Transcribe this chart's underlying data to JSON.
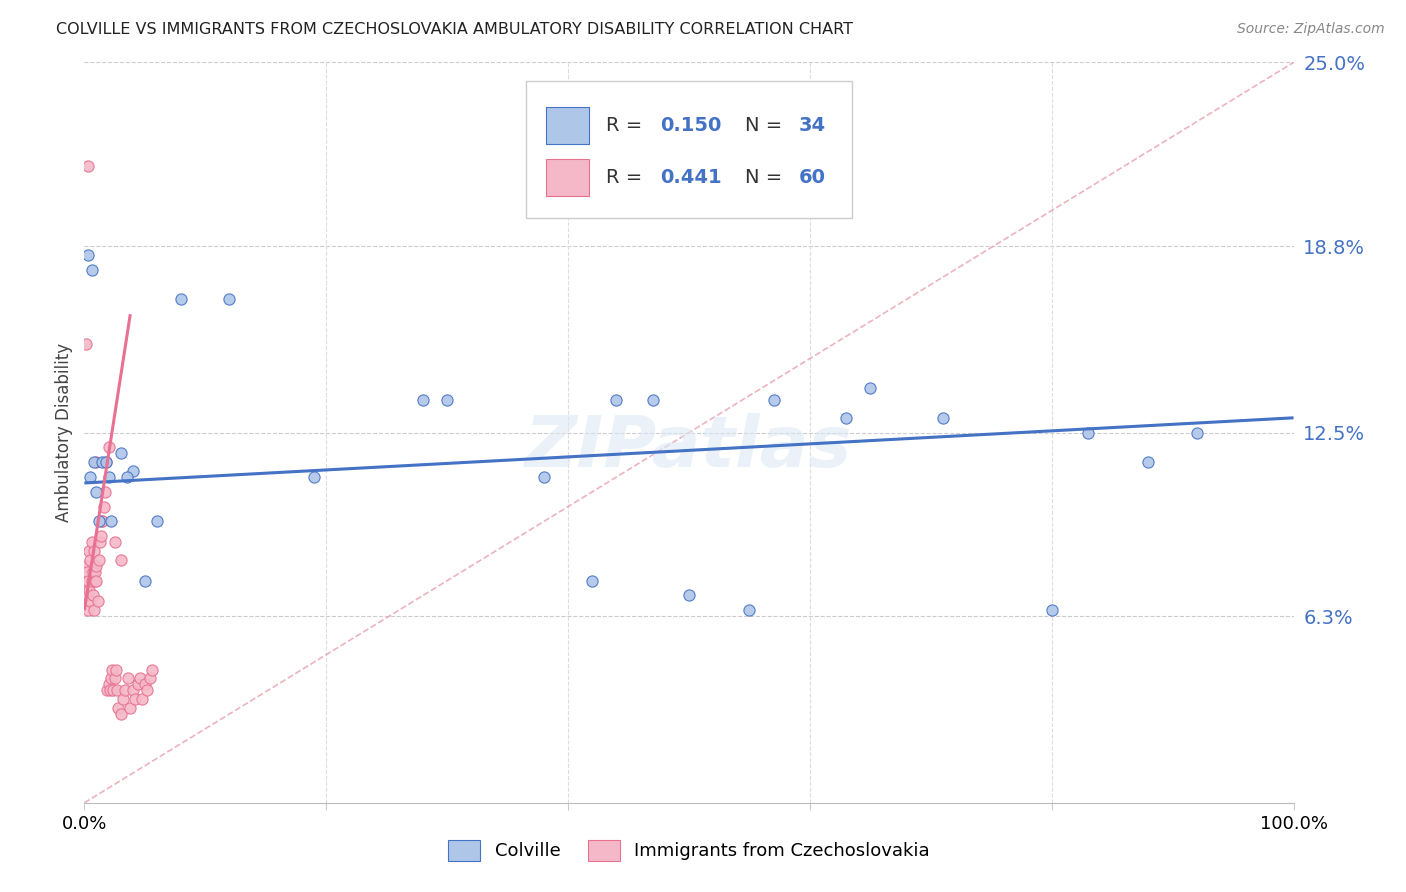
{
  "title": "COLVILLE VS IMMIGRANTS FROM CZECHOSLOVAKIA AMBULATORY DISABILITY CORRELATION CHART",
  "source": "Source: ZipAtlas.com",
  "ylabel": "Ambulatory Disability",
  "ytick_vals": [
    0.0,
    0.063,
    0.125,
    0.188,
    0.25
  ],
  "ytick_labels": [
    "",
    "6.3%",
    "12.5%",
    "18.8%",
    "25.0%"
  ],
  "colville_R": 0.15,
  "colville_N": 34,
  "czech_R": 0.441,
  "czech_N": 60,
  "colville_color": "#aec6e8",
  "czech_color": "#f4b8c8",
  "colville_line_color": "#4472c4",
  "czech_line_color": "#e87090",
  "watermark": "ZIPatlas",
  "colville_x": [
    0.003,
    0.006,
    0.008,
    0.01,
    0.012,
    0.015,
    0.018,
    0.022,
    0.03,
    0.04,
    0.05,
    0.06,
    0.08,
    0.12,
    0.19,
    0.3,
    0.38,
    0.42,
    0.44,
    0.47,
    0.5,
    0.55,
    0.57,
    0.63,
    0.65,
    0.71,
    0.8,
    0.83,
    0.88,
    0.92,
    0.005,
    0.02,
    0.035,
    0.28
  ],
  "colville_y": [
    0.185,
    0.18,
    0.115,
    0.105,
    0.095,
    0.115,
    0.115,
    0.095,
    0.118,
    0.112,
    0.075,
    0.095,
    0.17,
    0.17,
    0.11,
    0.136,
    0.11,
    0.075,
    0.136,
    0.136,
    0.07,
    0.065,
    0.136,
    0.13,
    0.14,
    0.13,
    0.065,
    0.125,
    0.115,
    0.125,
    0.11,
    0.11,
    0.11,
    0.136
  ],
  "czech_x": [
    0.0,
    0.001,
    0.001,
    0.002,
    0.002,
    0.003,
    0.003,
    0.004,
    0.004,
    0.005,
    0.005,
    0.006,
    0.006,
    0.007,
    0.007,
    0.008,
    0.008,
    0.009,
    0.009,
    0.01,
    0.01,
    0.011,
    0.012,
    0.013,
    0.014,
    0.015,
    0.016,
    0.017,
    0.018,
    0.019,
    0.02,
    0.021,
    0.022,
    0.023,
    0.024,
    0.025,
    0.026,
    0.027,
    0.028,
    0.03,
    0.032,
    0.034,
    0.036,
    0.038,
    0.04,
    0.042,
    0.044,
    0.046,
    0.048,
    0.05,
    0.052,
    0.054,
    0.056,
    0.01,
    0.015,
    0.02,
    0.025,
    0.03,
    0.003,
    0.001
  ],
  "czech_y": [
    0.07,
    0.072,
    0.08,
    0.07,
    0.078,
    0.065,
    0.075,
    0.072,
    0.085,
    0.068,
    0.082,
    0.075,
    0.088,
    0.07,
    0.078,
    0.065,
    0.085,
    0.075,
    0.078,
    0.08,
    0.075,
    0.068,
    0.082,
    0.088,
    0.09,
    0.095,
    0.1,
    0.105,
    0.115,
    0.038,
    0.04,
    0.038,
    0.042,
    0.045,
    0.038,
    0.042,
    0.045,
    0.038,
    0.032,
    0.03,
    0.035,
    0.038,
    0.042,
    0.032,
    0.038,
    0.035,
    0.04,
    0.042,
    0.035,
    0.04,
    0.038,
    0.042,
    0.045,
    0.115,
    0.095,
    0.12,
    0.088,
    0.082,
    0.215,
    0.155
  ],
  "colville_trend_x": [
    0.0,
    1.0
  ],
  "colville_trend_y": [
    0.108,
    0.13
  ],
  "czech_trend_x0": 0.0,
  "czech_trend_x1": 0.038,
  "czech_trend_y0": 0.065,
  "czech_trend_y1": 0.165,
  "diag_color": "#e8a0b0",
  "xlim": [
    0.0,
    1.0
  ],
  "ylim": [
    0.0,
    0.25
  ]
}
